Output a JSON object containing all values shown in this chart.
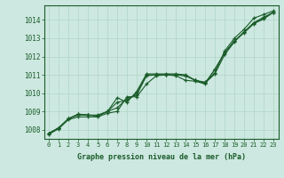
{
  "title": "Graphe pression niveau de la mer (hPa)",
  "bg_color": "#cde8e0",
  "line_color": "#1a5c2a",
  "grid_color": "#b0d4c8",
  "ylim": [
    1007.5,
    1014.8
  ],
  "xlim": [
    -0.5,
    23.5
  ],
  "yticks": [
    1008,
    1009,
    1010,
    1011,
    1012,
    1013,
    1014
  ],
  "xticks": [
    0,
    1,
    2,
    3,
    4,
    5,
    6,
    7,
    8,
    9,
    10,
    11,
    12,
    13,
    14,
    15,
    16,
    17,
    18,
    19,
    20,
    21,
    22,
    23
  ],
  "series": [
    [
      1007.8,
      1008.1,
      1008.6,
      1008.8,
      1008.8,
      1008.8,
      1009.0,
      1009.75,
      1009.5,
      1010.1,
      1011.05,
      1011.05,
      1011.05,
      1011.05,
      1011.0,
      1010.7,
      1010.6,
      1011.1,
      1012.3,
      1013.0,
      1013.5,
      1014.1,
      1014.3,
      1014.5
    ],
    [
      1007.8,
      1008.1,
      1008.6,
      1008.85,
      1008.8,
      1008.75,
      1009.0,
      1009.5,
      1009.6,
      1010.0,
      1011.0,
      1011.0,
      1011.0,
      1011.0,
      1010.95,
      1010.7,
      1010.55,
      1011.05,
      1012.1,
      1012.8,
      1013.35,
      1013.85,
      1014.15,
      1014.42
    ],
    [
      1007.8,
      1008.1,
      1008.6,
      1008.85,
      1008.8,
      1008.75,
      1009.0,
      1009.2,
      1009.7,
      1009.9,
      1010.95,
      1011.0,
      1011.0,
      1011.0,
      1010.95,
      1010.7,
      1010.55,
      1011.3,
      1012.2,
      1012.85,
      1013.35,
      1013.85,
      1014.1,
      1014.42
    ],
    [
      1007.75,
      1008.05,
      1008.55,
      1008.7,
      1008.7,
      1008.7,
      1008.9,
      1009.0,
      1009.8,
      1009.8,
      1010.5,
      1010.95,
      1011.0,
      1010.95,
      1010.7,
      1010.65,
      1010.5,
      1011.3,
      1012.2,
      1012.85,
      1013.3,
      1013.8,
      1014.05,
      1014.42
    ]
  ]
}
